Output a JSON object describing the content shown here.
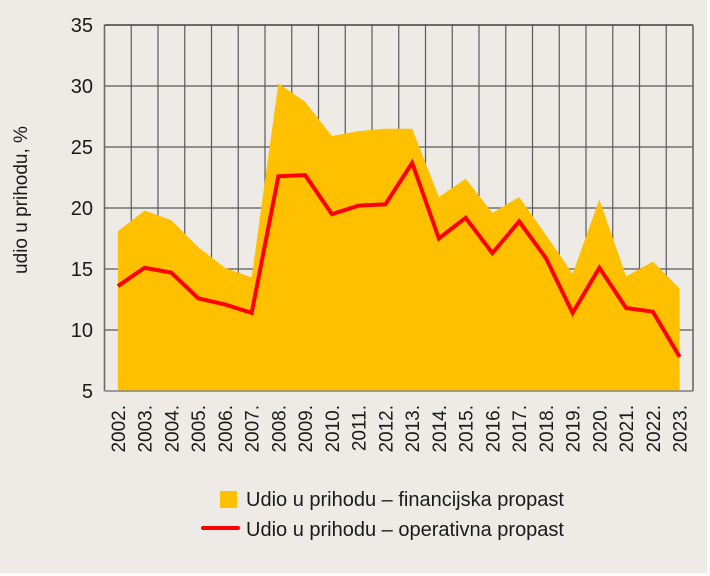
{
  "chart_data": {
    "type": "area",
    "title": "",
    "xlabel": "",
    "ylabel": "udio u prihodu, %",
    "ylim": [
      5,
      35
    ],
    "yticks": [
      5,
      10,
      15,
      20,
      25,
      30,
      35
    ],
    "grid": true,
    "legend_position": "bottom-center",
    "categories": [
      "2002.",
      "2003.",
      "2004.",
      "2005.",
      "2006.",
      "2007.",
      "2008.",
      "2009.",
      "2010.",
      "2011.",
      "2012.",
      "2013.",
      "2014.",
      "2015.",
      "2016.",
      "2017.",
      "2018.",
      "2019.",
      "2020.",
      "2021.",
      "2022.",
      "2023."
    ],
    "series": [
      {
        "name": "Udio u prihodu – financijska propast",
        "type": "area",
        "color": "#FFC000",
        "values": [
          18.1,
          19.8,
          19.0,
          16.8,
          15.1,
          14.3,
          30.2,
          28.7,
          25.9,
          26.3,
          26.5,
          26.5,
          20.9,
          22.4,
          19.6,
          20.9,
          17.8,
          14.6,
          20.7,
          14.4,
          15.6,
          13.4
        ]
      },
      {
        "name": "Udio u prihodu – operativna propast",
        "type": "line",
        "color": "#FF0000",
        "values": [
          13.6,
          15.1,
          14.7,
          12.6,
          12.1,
          11.4,
          22.6,
          22.7,
          19.5,
          20.2,
          20.3,
          23.7,
          17.5,
          19.2,
          16.3,
          18.9,
          15.9,
          11.4,
          15.1,
          11.8,
          11.5,
          7.8
        ]
      }
    ]
  },
  "colors": {
    "background": "#EEEBE6",
    "grid": "#5a5a5a"
  }
}
